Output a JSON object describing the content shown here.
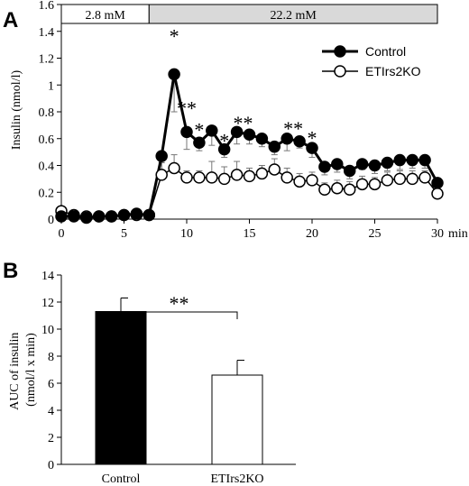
{
  "colors": {
    "control": "#000000",
    "ko": "#ffffff",
    "axis": "#000000",
    "phase_high": "#d9d9d9"
  },
  "chart_data": [
    {
      "type": "line",
      "panel": "A",
      "ylabel": "Insulin (nmol/l)",
      "xlim": [
        0,
        30
      ],
      "ylim": [
        0,
        1.6
      ],
      "x_unit": "min",
      "xticks": [
        0,
        5,
        10,
        15,
        20,
        25,
        30
      ],
      "yticks": [
        0,
        0.2,
        0.4,
        0.6,
        0.8,
        1,
        1.2,
        1.4,
        1.6
      ],
      "ytick_labels": [
        "0",
        "0.2",
        "0.4",
        "0.6",
        "0.8",
        "1",
        "1.2",
        "1.4",
        "1.6"
      ],
      "phases": [
        {
          "label": "2.8 mM",
          "from": 0,
          "to": 7
        },
        {
          "label": "22.2 mM",
          "from": 7,
          "to": 30
        }
      ],
      "legend_position": "top-right",
      "x": [
        0,
        1,
        2,
        3,
        4,
        5,
        6,
        7,
        8,
        9,
        10,
        11,
        12,
        13,
        14,
        15,
        16,
        17,
        18,
        19,
        20,
        21,
        22,
        23,
        24,
        25,
        26,
        27,
        28,
        29,
        30
      ],
      "series": [
        {
          "name": "Control",
          "marker": "filled",
          "values": [
            0.02,
            0.02,
            0.01,
            0.02,
            0.02,
            0.03,
            0.04,
            0.03,
            0.47,
            1.08,
            0.65,
            0.57,
            0.66,
            0.52,
            0.65,
            0.63,
            0.6,
            0.54,
            0.6,
            0.58,
            0.53,
            0.39,
            0.41,
            0.36,
            0.41,
            0.4,
            0.42,
            0.44,
            0.44,
            0.44,
            0.27
          ],
          "errors": [
            0.02,
            0.02,
            0.02,
            0.02,
            0.02,
            0.02,
            0.02,
            0.02,
            0.17,
            0.28,
            0.13,
            0.06,
            0.11,
            0.06,
            0.09,
            0.07,
            0.06,
            0.06,
            0.09,
            0.05,
            0.07,
            0.06,
            0.06,
            0.06,
            0.04,
            0.06,
            0.06,
            0.07,
            0.06,
            0.06,
            0.07
          ]
        },
        {
          "name": "ETIrs2KO",
          "marker": "open",
          "values": [
            0.06,
            0.03,
            0.02,
            0.02,
            0.02,
            0.03,
            0.03,
            0.03,
            0.33,
            0.38,
            0.31,
            0.31,
            0.31,
            0.3,
            0.33,
            0.32,
            0.34,
            0.37,
            0.31,
            0.28,
            0.29,
            0.22,
            0.23,
            0.22,
            0.26,
            0.26,
            0.29,
            0.3,
            0.3,
            0.31,
            0.19
          ],
          "errors": [
            0.03,
            0.02,
            0.02,
            0.02,
            0.02,
            0.02,
            0.02,
            0.02,
            0.09,
            0.1,
            0.05,
            0.05,
            0.12,
            0.09,
            0.1,
            0.06,
            0.06,
            0.08,
            0.07,
            0.06,
            0.06,
            0.05,
            0.06,
            0.06,
            0.06,
            0.05,
            0.06,
            0.06,
            0.06,
            0.05,
            0.05
          ]
        }
      ],
      "annotations": [
        {
          "text": "*",
          "x": 9,
          "y": 1.41
        },
        {
          "text": "**",
          "x": 10,
          "y": 0.87
        },
        {
          "text": "*",
          "x": 11,
          "y": 0.71
        },
        {
          "text": "*",
          "x": 13,
          "y": 0.63
        },
        {
          "text": "**",
          "x": 14.5,
          "y": 0.76
        },
        {
          "text": "**",
          "x": 18.5,
          "y": 0.72
        },
        {
          "text": "*",
          "x": 20,
          "y": 0.65
        }
      ]
    },
    {
      "type": "bar",
      "panel": "B",
      "ylabel": "AUC of insulin\n(nmol/l x min)",
      "ylim": [
        0,
        14
      ],
      "yticks": [
        0,
        2,
        4,
        6,
        8,
        10,
        12,
        14
      ],
      "categories": [
        "Control",
        "ETIrs2KO"
      ],
      "values": [
        11.3,
        6.6
      ],
      "errors": [
        1.0,
        1.1
      ],
      "fills": [
        "#000000",
        "#ffffff"
      ],
      "significance": "**"
    }
  ]
}
